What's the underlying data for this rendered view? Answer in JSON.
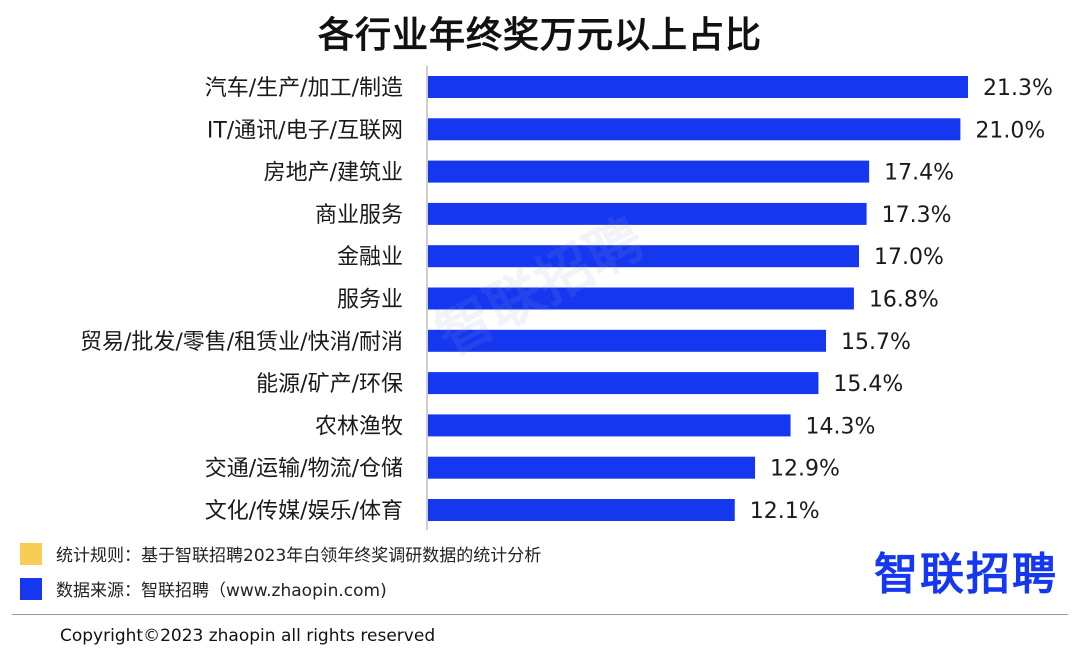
{
  "header": {
    "title": "各行业年终奖万元以上占比"
  },
  "chart_data": {
    "type": "bar",
    "orientation": "horizontal",
    "title": "各行业年终奖万元以上占比",
    "xlabel": "",
    "ylabel": "",
    "categories": [
      "汽车/生产/加工/制造",
      "IT/通讯/电子/互联网",
      "房地产/建筑业",
      "商业服务",
      "金融业",
      "服务业",
      "贸易/批发/零售/租赁业/快消/耐消",
      "能源/矿产/环保",
      "农林渔牧",
      "交通/运输/物流/仓储",
      "文化/传媒/娱乐/体育"
    ],
    "values": [
      21.3,
      21.0,
      17.4,
      17.3,
      17.0,
      16.8,
      15.7,
      15.4,
      14.3,
      12.9,
      12.1
    ],
    "value_labels": [
      "21.3%",
      "21.0%",
      "17.4%",
      "17.3%",
      "17.0%",
      "16.8%",
      "15.7%",
      "15.4%",
      "14.3%",
      "12.9%",
      "12.1%"
    ],
    "unit": "%",
    "grid": false,
    "bar_color": "#1537f0"
  },
  "watermark": "智联招聘",
  "legend": {
    "rule_color": "#f7cd55",
    "rule_text": "统计规则：基于智联招聘2023年白领年终奖调研数据的统计分析",
    "source_color": "#1537f0",
    "source_text": "数据来源：智联招聘（www.zhaopin.com)"
  },
  "brand": {
    "logo_text": "智联招聘",
    "logo_color": "#1537f0"
  },
  "footer": {
    "copyright": "Copyright©2023 zhaopin all rights reserved"
  }
}
